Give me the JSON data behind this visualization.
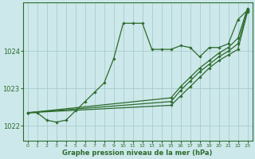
{
  "xlabel": "Graphe pression niveau de la mer (hPa)",
  "bg_color": "#cce8ea",
  "grid_color": "#aacccc",
  "line_color": "#2d6b2d",
  "marker": "D",
  "marker_size": 1.8,
  "line_width": 0.9,
  "xlim": [
    -0.5,
    23.5
  ],
  "ylim": [
    1021.6,
    1025.3
  ],
  "yticks": [
    1022,
    1023,
    1024
  ],
  "xticks": [
    0,
    1,
    2,
    3,
    4,
    5,
    6,
    7,
    8,
    9,
    10,
    11,
    12,
    13,
    14,
    15,
    16,
    17,
    18,
    19,
    20,
    21,
    22,
    23
  ],
  "series": [
    {
      "x": [
        0,
        1,
        2,
        3,
        4,
        5,
        6,
        7,
        8,
        9,
        10,
        11,
        12,
        13,
        14,
        15,
        16,
        17,
        18,
        19,
        20,
        21,
        22,
        23
      ],
      "y": [
        1022.35,
        1022.35,
        1022.15,
        1022.1,
        1022.15,
        1022.4,
        1022.65,
        1022.9,
        1023.15,
        1023.8,
        1024.75,
        1024.75,
        1024.75,
        1024.05,
        1024.05,
        1024.05,
        1024.15,
        1024.1,
        1023.85,
        1024.1,
        1024.1,
        1024.2,
        1024.85,
        1025.1
      ]
    },
    {
      "x": [
        0,
        15,
        16,
        17,
        18,
        19,
        20,
        21,
        22,
        23
      ],
      "y": [
        1022.35,
        1022.55,
        1022.8,
        1023.05,
        1023.3,
        1023.55,
        1023.75,
        1023.9,
        1024.05,
        1025.05
      ]
    },
    {
      "x": [
        0,
        15,
        16,
        17,
        18,
        19,
        20,
        21,
        22,
        23
      ],
      "y": [
        1022.35,
        1022.65,
        1022.95,
        1023.2,
        1023.45,
        1023.65,
        1023.85,
        1024.0,
        1024.2,
        1025.1
      ]
    },
    {
      "x": [
        0,
        15,
        16,
        17,
        18,
        19,
        20,
        21,
        22,
        23
      ],
      "y": [
        1022.35,
        1022.75,
        1023.05,
        1023.3,
        1023.55,
        1023.75,
        1023.95,
        1024.1,
        1024.35,
        1025.15
      ]
    }
  ]
}
